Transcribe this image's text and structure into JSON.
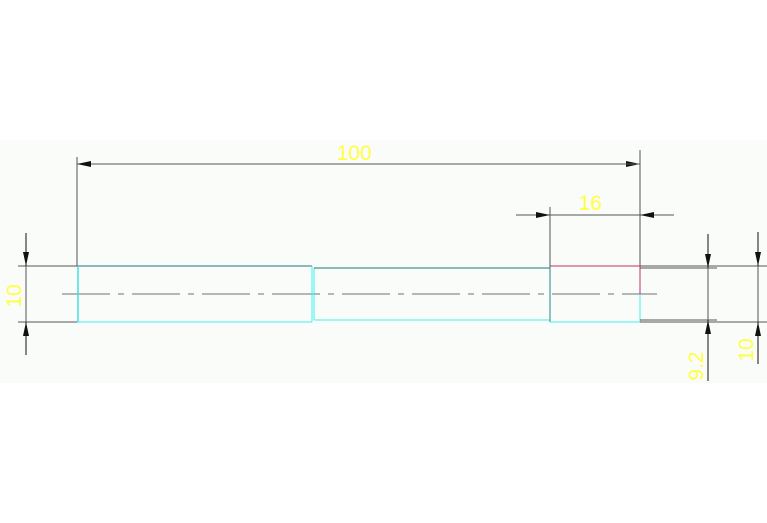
{
  "drawing": {
    "dimensions": {
      "overall_length": "100",
      "end_length": "16",
      "left_diameter": "10",
      "right_inner_diameter": "9.2",
      "right_outer_diameter": "10"
    },
    "colors": {
      "background": "#fafcfa",
      "dimension_line": "#555555",
      "dimension_text": "#ffff40",
      "part_edge_top": "#207878",
      "part_edge_bottom": "#40f0f0",
      "end_edge_top": "#c03060",
      "centerline": "#707070"
    }
  }
}
